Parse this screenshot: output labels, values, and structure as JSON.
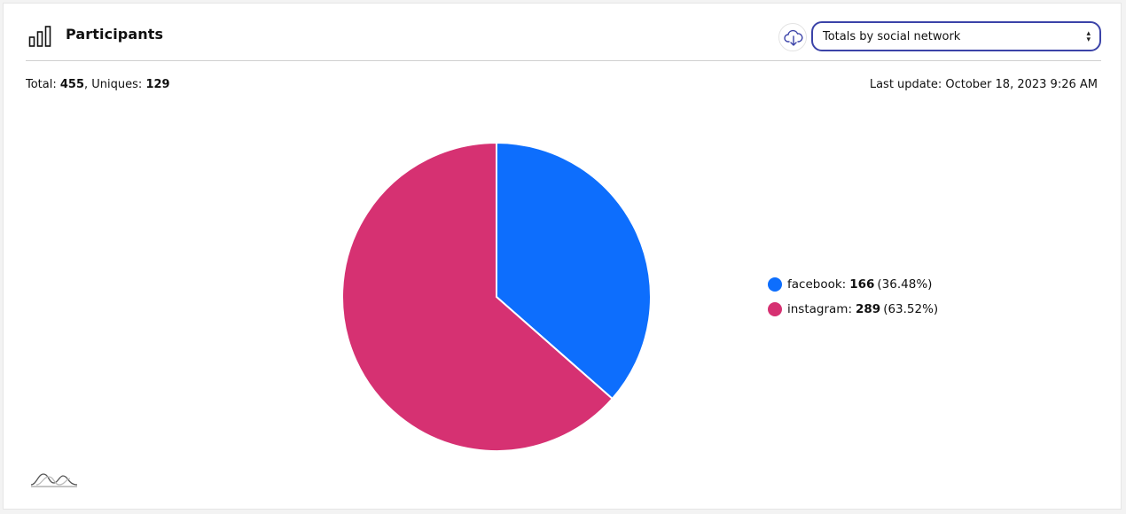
{
  "header": {
    "title": "Participants",
    "chart_icon": "bar-chart-icon",
    "download_icon": "cloud-download-icon",
    "select": {
      "value": "Totals by social network"
    }
  },
  "summary": {
    "total_label": "Total:",
    "total_value": "455",
    "uniques_label": "Uniques:",
    "uniques_value": "129",
    "last_update": "Last update: October 18, 2023 9:26 AM"
  },
  "brand_icon": "logo-wave-icon",
  "chart_data": {
    "type": "pie",
    "slices": [
      {
        "label": "facebook:",
        "value": 166,
        "percent": "(36.48%)",
        "color": "#0d6efd"
      },
      {
        "label": "instagram:",
        "value": 289,
        "percent": "(63.52%)",
        "color": "#d63172"
      }
    ]
  }
}
